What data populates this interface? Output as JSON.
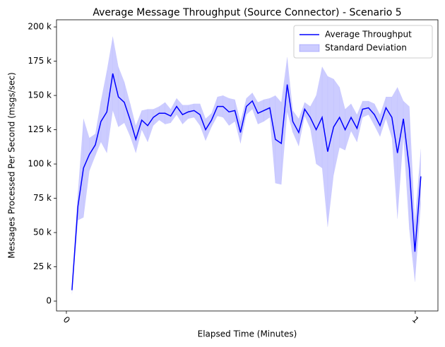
{
  "chart_data": {
    "type": "line",
    "title": "Average Message Throughput (Source Connector) - Scenario 5",
    "x_label": "Elapsed Time (Minutes)",
    "y_label": "Messages Processed Per Second (msgs/sec)",
    "x": [
      0.016,
      0.033,
      0.049,
      0.066,
      0.083,
      0.099,
      0.116,
      0.133,
      0.149,
      0.166,
      0.183,
      0.199,
      0.216,
      0.233,
      0.249,
      0.266,
      0.283,
      0.299,
      0.316,
      0.333,
      0.349,
      0.366,
      0.383,
      0.399,
      0.416,
      0.433,
      0.449,
      0.466,
      0.483,
      0.499,
      0.516,
      0.533,
      0.549,
      0.566,
      0.583,
      0.599,
      0.616,
      0.633,
      0.649,
      0.666,
      0.683,
      0.699,
      0.716,
      0.733,
      0.749,
      0.766,
      0.783,
      0.799,
      0.816,
      0.833,
      0.849,
      0.866,
      0.883,
      0.899,
      0.916,
      0.933,
      0.949,
      0.966,
      0.983,
      0.999,
      1.016
    ],
    "series": [
      {
        "name": "Average Throughput",
        "color": "#0000ff",
        "values": [
          8000,
          69000,
          97000,
          107000,
          114000,
          131000,
          138000,
          166000,
          149000,
          145000,
          132000,
          118000,
          132000,
          128000,
          134000,
          137000,
          137000,
          135000,
          142000,
          136000,
          138000,
          139000,
          136000,
          125000,
          132000,
          142000,
          142000,
          138000,
          139000,
          123000,
          142000,
          146000,
          137000,
          139000,
          141000,
          118000,
          115000,
          158000,
          131000,
          123000,
          140000,
          134000,
          125000,
          134000,
          109000,
          127000,
          134000,
          125000,
          134000,
          126000,
          140000,
          141000,
          136000,
          128000,
          141000,
          134000,
          108000,
          133000,
          97000,
          36000,
          91000
        ]
      }
    ],
    "band": {
      "name": "Standard Deviation",
      "color": "#0000ff",
      "alpha": 0.2,
      "values": [
        3000,
        10000,
        36000,
        12000,
        8000,
        15000,
        30000,
        27000,
        22000,
        15000,
        12000,
        10000,
        7000,
        12000,
        6000,
        5000,
        8000,
        5000,
        6000,
        7000,
        5000,
        5000,
        8000,
        8000,
        5000,
        7000,
        8000,
        10000,
        8000,
        8000,
        6000,
        6000,
        8000,
        8000,
        7000,
        32000,
        30000,
        20000,
        8000,
        10000,
        5000,
        8000,
        25000,
        37000,
        55000,
        35000,
        22000,
        15000,
        10000,
        10000,
        6000,
        5000,
        8000,
        8000,
        8000,
        15000,
        48000,
        13000,
        45000,
        22000,
        20000
      ]
    },
    "xlim": [
      -0.0283,
      1.065
    ],
    "ylim": [
      -7200,
      205200
    ],
    "xticks": [
      0,
      1
    ],
    "yticks": [
      0,
      {
        "value": 25000,
        "label": "25 k"
      },
      {
        "value": 50000,
        "label": "50 k"
      },
      {
        "value": 75000,
        "label": "75 k"
      },
      {
        "value": 100000,
        "label": "100 k"
      },
      {
        "value": 125000,
        "label": "125 k"
      },
      {
        "value": 150000,
        "label": "150 k"
      },
      {
        "value": 175000,
        "label": "175 k"
      },
      {
        "value": 200000,
        "label": "200 k"
      }
    ],
    "legend": "upper right"
  }
}
